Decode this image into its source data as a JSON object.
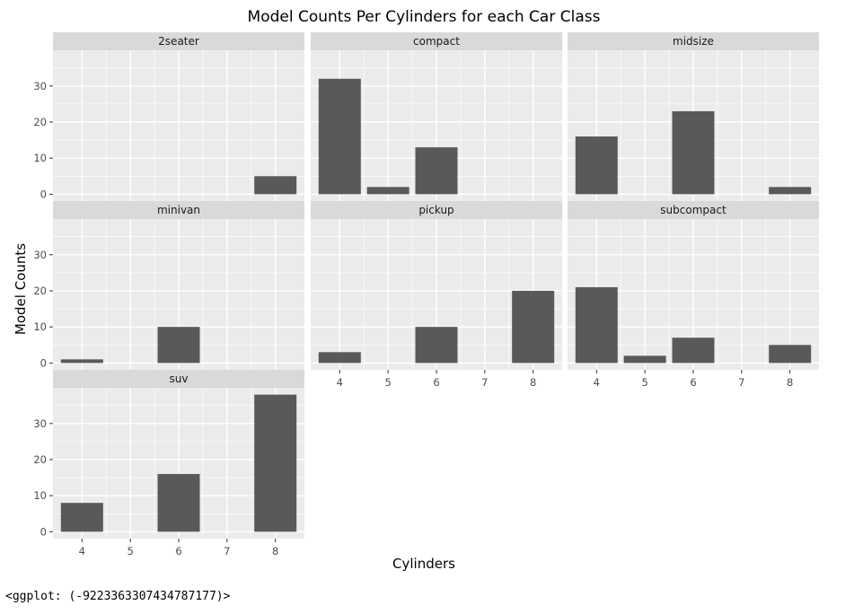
{
  "chart_data": {
    "type": "bar",
    "title": "Model Counts Per Cylinders for each Car Class",
    "xlabel": "Cylinders",
    "ylabel": "Model Counts",
    "x_ticks": [
      "4",
      "5",
      "6",
      "7",
      "8"
    ],
    "y_ticks": [
      0,
      10,
      20,
      30
    ],
    "ylim": [
      -1.9,
      39.9
    ],
    "grid": true,
    "colors": {
      "bar": "#595959",
      "panel_bg": "#ebebeb",
      "strip_bg": "#d9d9d9",
      "grid_major": "#ffffff",
      "tick": "#333333"
    },
    "facets": [
      {
        "label": "2seater",
        "categories": [
          "8"
        ],
        "values": [
          5
        ]
      },
      {
        "label": "compact",
        "categories": [
          "4",
          "5",
          "6"
        ],
        "values": [
          32,
          2,
          13
        ]
      },
      {
        "label": "midsize",
        "categories": [
          "4",
          "6",
          "8"
        ],
        "values": [
          16,
          23,
          2
        ]
      },
      {
        "label": "minivan",
        "categories": [
          "4",
          "6"
        ],
        "values": [
          1,
          10
        ]
      },
      {
        "label": "pickup",
        "categories": [
          "4",
          "6",
          "8"
        ],
        "values": [
          3,
          10,
          20
        ]
      },
      {
        "label": "subcompact",
        "categories": [
          "4",
          "5",
          "6",
          "8"
        ],
        "values": [
          21,
          2,
          7,
          5
        ]
      },
      {
        "label": "suv",
        "categories": [
          "4",
          "6",
          "8"
        ],
        "values": [
          8,
          16,
          38
        ]
      }
    ]
  },
  "footer_text": "<ggplot: (-9223363307434787177)>"
}
